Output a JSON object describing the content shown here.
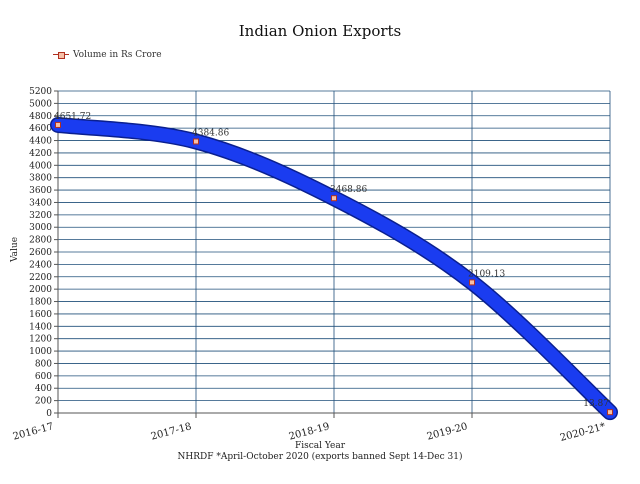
{
  "chart_data": {
    "type": "line",
    "title": "Indian Onion Exports",
    "xlabel": "Fiscal Year",
    "ylabel": "Value",
    "footer": "NHRDF *April-October 2020 (exports banned Sept 14-Dec 31)",
    "categories": [
      "2016-17",
      "2017-18",
      "2018-19",
      "2019-20",
      "2020-21*"
    ],
    "series": [
      {
        "name": "Volume in Rs Crore",
        "values": [
          4651.72,
          4384.86,
          3468.86,
          2109.13,
          13.87
        ]
      }
    ],
    "data_labels": [
      "4651.72",
      "4384.86",
      "3468.86",
      "2109.13",
      "13.87"
    ],
    "ylim": [
      0,
      5200
    ],
    "ytick_step": 200,
    "grid": true,
    "legend_position": "top-left",
    "colors": {
      "line": "#1a3cf0",
      "marker": "#b03020",
      "grid": "#1f4f7a",
      "axis": "#555555"
    }
  }
}
